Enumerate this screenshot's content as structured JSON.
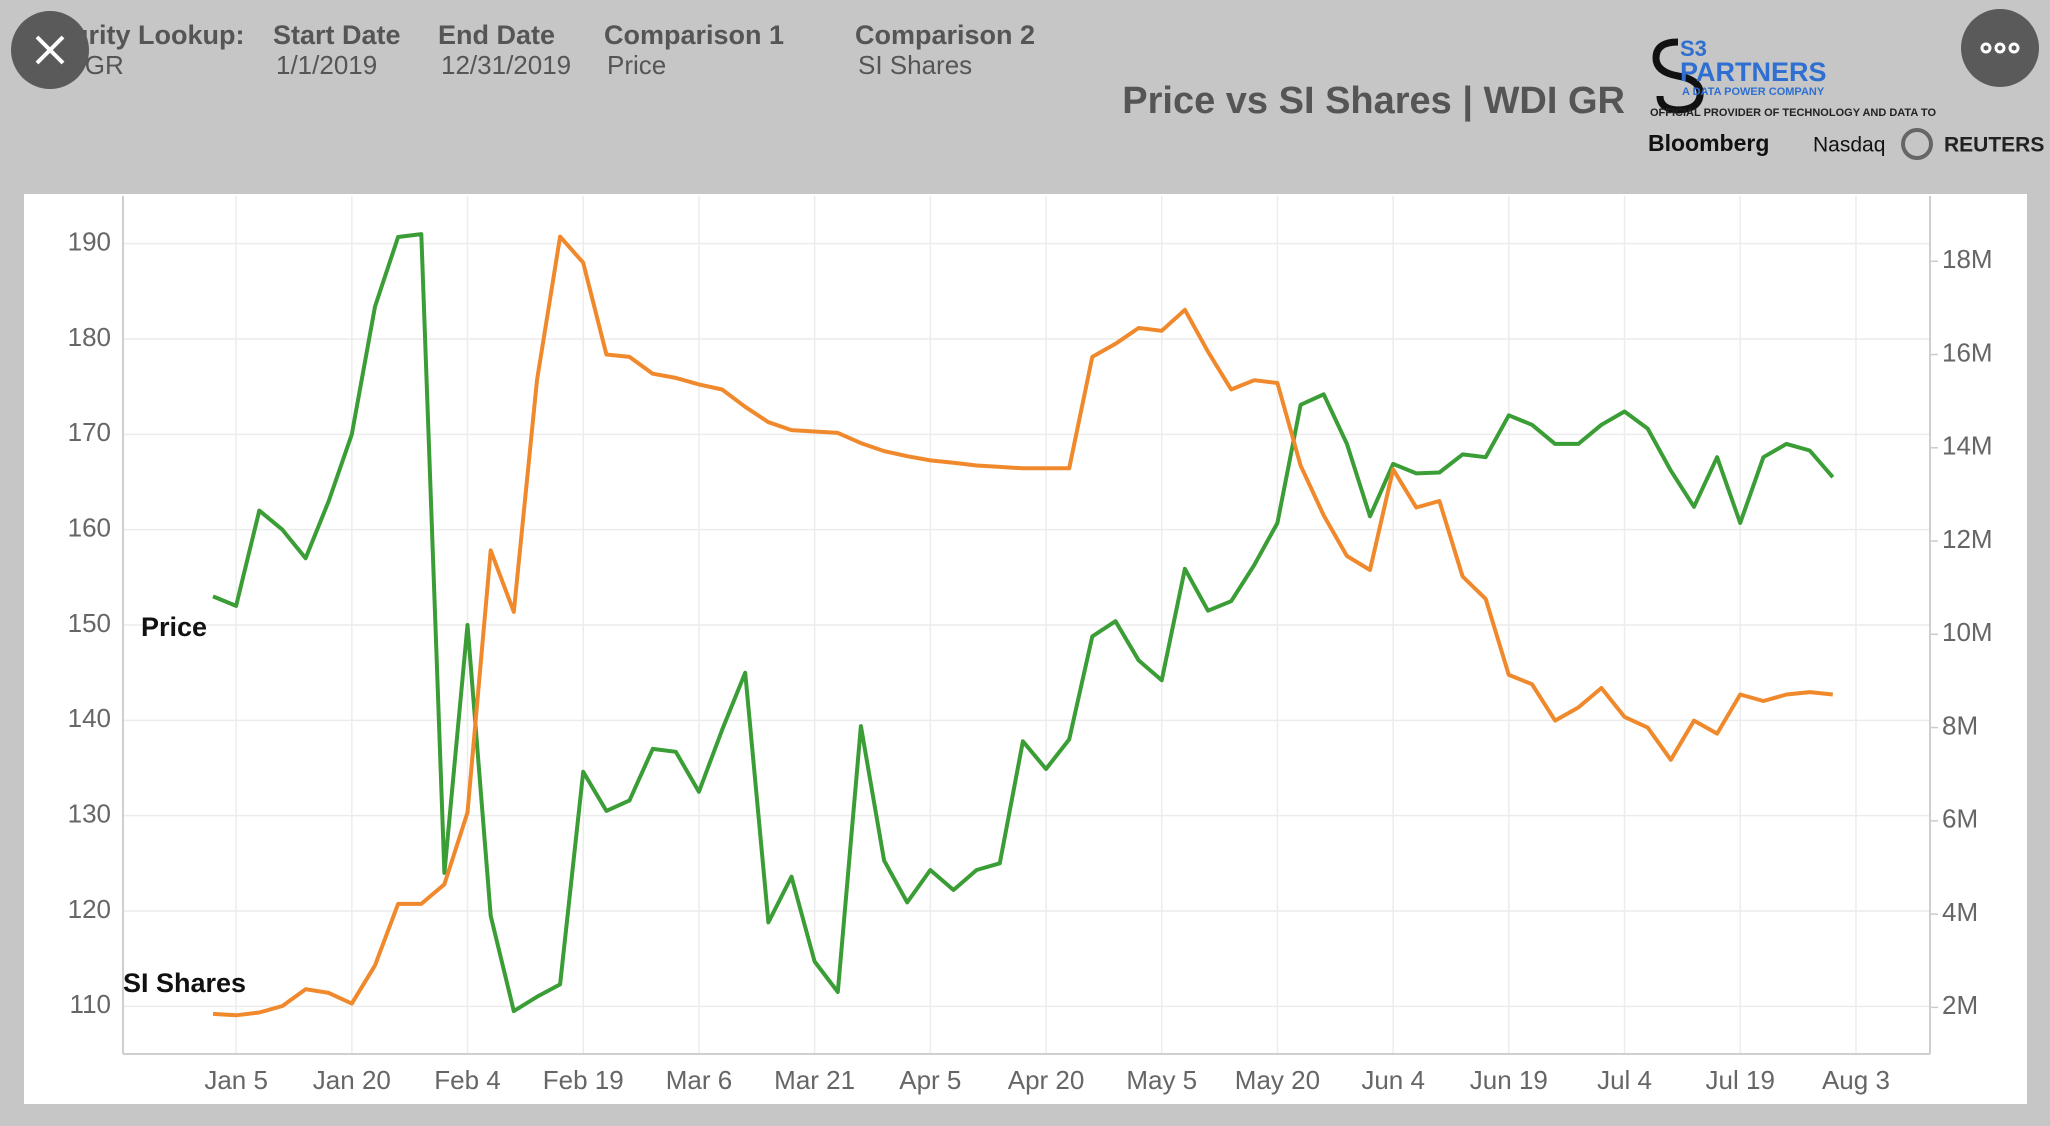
{
  "filters": [
    {
      "label": "Security Lookup:",
      "value": "WDI GR"
    },
    {
      "label": "Start Date",
      "value": "1/1/2019"
    },
    {
      "label": "End Date",
      "value": "12/31/2019"
    },
    {
      "label": "Comparison 1",
      "value": "Price"
    },
    {
      "label": "Comparison 2",
      "value": "SI Shares"
    }
  ],
  "logo": {
    "mark": "S3",
    "name": "PARTNERS",
    "tagline": "A DATA POWER COMPANY",
    "provider": "OFFICIAL PROVIDER OF TECHNOLOGY AND DATA TO",
    "partners": [
      "Bloomberg",
      "Nasdaq",
      "REUTERS"
    ]
  },
  "chart_data": {
    "type": "line",
    "title": "Price vs SI Shares | WDI GR",
    "categories": [
      null,
      "Jan 5",
      null,
      null,
      null,
      null,
      "Jan 20",
      null,
      null,
      null,
      null,
      "Feb 4",
      null,
      null,
      null,
      null,
      "Feb 19",
      null,
      null,
      null,
      null,
      "Mar 6",
      null,
      null,
      null,
      null,
      "Mar 21",
      null,
      null,
      null,
      null,
      "Apr 5",
      null,
      null,
      null,
      null,
      "Apr 20",
      null,
      null,
      null,
      null,
      "May 5",
      null,
      null,
      null,
      null,
      "May 20",
      null,
      null,
      null,
      null,
      "Jun 4",
      null,
      null,
      null,
      null,
      "Jun 19",
      null,
      null,
      null,
      null,
      "Jul 4",
      null,
      null,
      null,
      null,
      "Jul 19",
      null,
      null,
      null,
      null,
      "Aug 3"
    ],
    "series": [
      {
        "name": "Price",
        "color": "#3a9d35",
        "values": [
          153,
          152,
          162,
          160,
          157,
          163,
          170,
          183.4,
          190.7,
          191,
          124,
          150,
          119.5,
          109.5,
          111,
          112.3,
          134.6,
          130.5,
          131.6,
          137,
          136.7,
          132.5,
          139,
          145,
          118.8,
          123.6,
          114.7,
          111.5,
          139.4,
          125.3,
          120.9,
          124.3,
          122.2,
          124.3,
          125,
          137.8,
          134.9,
          138,
          148.8,
          150.4,
          146.3,
          144.2,
          155.9,
          151.5,
          152.5,
          156.3,
          160.7,
          173.1,
          174.2,
          169,
          161.4,
          166.9,
          165.9,
          166,
          167.9,
          167.6,
          172,
          171,
          169,
          169,
          171,
          172.4,
          170.6,
          166.2,
          162.4,
          167.6,
          160.7,
          167.6,
          169,
          168.3,
          165.5,
          null
        ]
      },
      {
        "name": "SI Shares",
        "color": "#f0892c",
        "axis": "y2",
        "values": [
          1860000,
          1830000,
          1890000,
          2030000,
          2390000,
          2310000,
          2080000,
          2900000,
          4220000,
          4220000,
          4640000,
          6180000,
          11800000,
          10480000,
          15450000,
          18530000,
          17970000,
          16000000,
          15950000,
          15590000,
          15500000,
          15360000,
          15250000,
          14880000,
          14550000,
          14380000,
          14350000,
          14320000,
          14100000,
          13930000,
          13820000,
          13730000,
          13680000,
          13620000,
          13590000,
          13560000,
          13560000,
          13560000,
          15950000,
          16230000,
          16570000,
          16510000,
          16960000,
          16060000,
          15250000,
          15450000,
          15390000,
          13620000,
          12550000,
          11680000,
          11380000,
          13540000,
          12720000,
          12860000,
          11240000,
          10760000,
          9130000,
          8930000,
          8150000,
          8430000,
          8850000,
          8230000,
          8000000,
          7310000,
          8150000,
          7870000,
          8710000,
          8570000,
          8710000,
          8760000,
          8710000,
          null
        ]
      }
    ],
    "ylim": [
      105,
      195
    ],
    "yticks": [
      110,
      120,
      130,
      140,
      150,
      160,
      170,
      180,
      190
    ],
    "y2lim": [
      1000000,
      19400000
    ],
    "y2ticks": [
      {
        "value": 2000000,
        "label": "2M"
      },
      {
        "value": 4000000,
        "label": "4M"
      },
      {
        "value": 6000000,
        "label": "6M"
      },
      {
        "value": 8000000,
        "label": "8M"
      },
      {
        "value": 10000000,
        "label": "10M"
      },
      {
        "value": 12000000,
        "label": "12M"
      },
      {
        "value": 14000000,
        "label": "14M"
      },
      {
        "value": 16000000,
        "label": "16M"
      },
      {
        "value": 18000000,
        "label": "18M"
      }
    ],
    "grid": true
  }
}
